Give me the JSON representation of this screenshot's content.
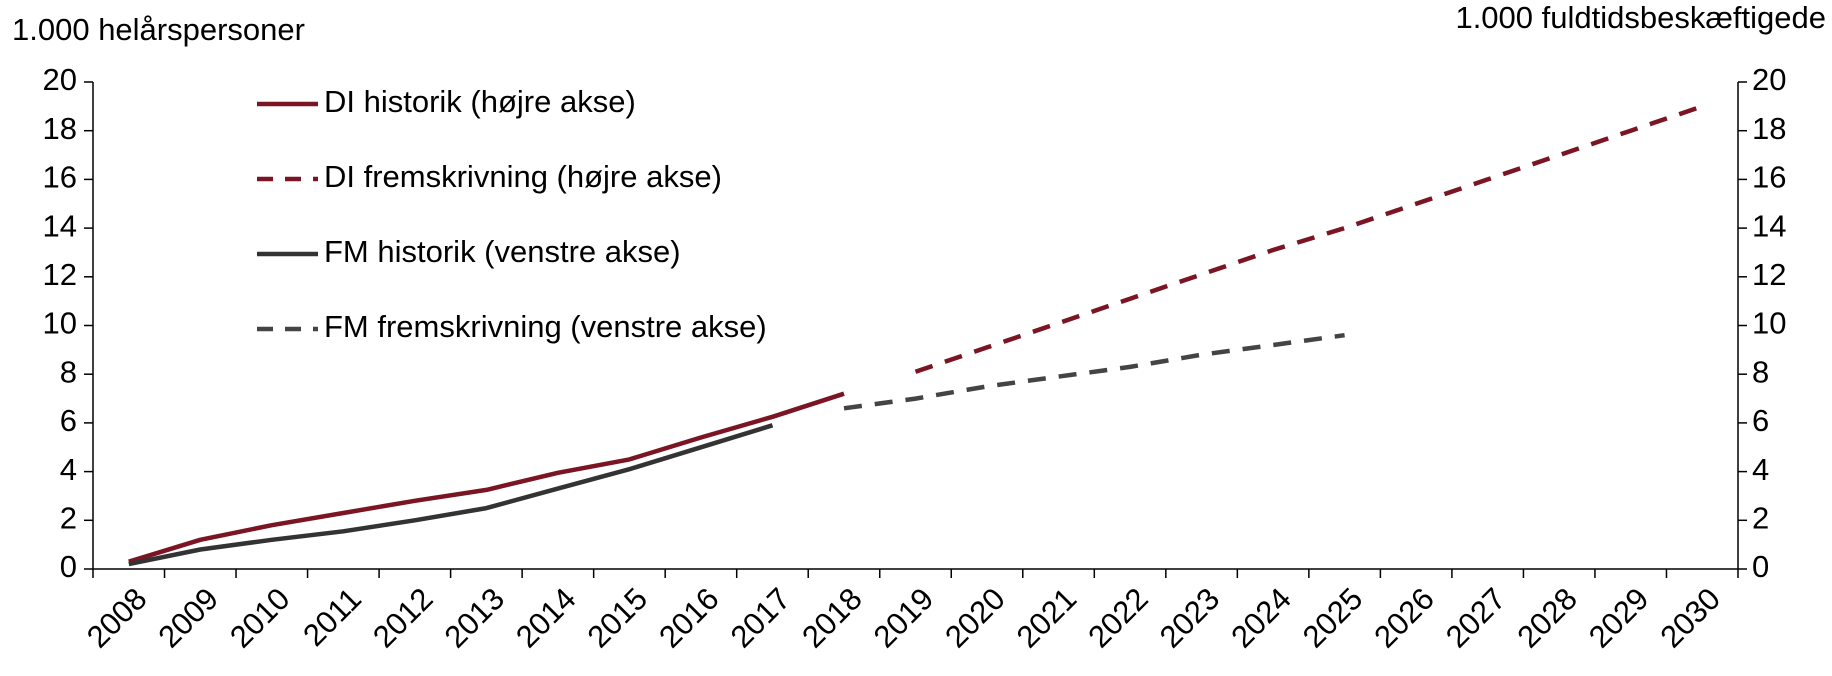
{
  "chart_data": {
    "type": "line",
    "y_label": "1.000 helårspersoner",
    "y2_label": "1.000 fuldtidsbeskæftigede",
    "categories": [
      "2008",
      "2009",
      "2010",
      "2011",
      "2012",
      "2013",
      "2014",
      "2015",
      "2016",
      "2017",
      "2018",
      "2019",
      "2020",
      "2021",
      "2022",
      "2023",
      "2024",
      "2025",
      "2026",
      "2027",
      "2028",
      "2029",
      "2030"
    ],
    "ylim": [
      0,
      20
    ],
    "yticks": [
      0,
      2,
      4,
      6,
      8,
      10,
      12,
      14,
      16,
      18,
      20
    ],
    "y2lim": [
      0,
      20
    ],
    "y2ticks": [
      0,
      2,
      4,
      6,
      8,
      10,
      12,
      14,
      16,
      18,
      20
    ],
    "legend": "upper left",
    "series": [
      {
        "name": "DI historik (højre akse)",
        "color": "#7b1523",
        "dashed": false,
        "axis": "y2",
        "values": [
          0.3,
          1.2,
          1.8,
          2.3,
          2.8,
          3.25,
          3.95,
          4.5,
          5.4,
          6.25,
          7.2,
          null,
          null,
          null,
          null,
          null,
          null,
          null,
          null,
          null,
          null,
          null,
          null
        ]
      },
      {
        "name": "DI fremskrivning (højre akse)",
        "color": "#7b1523",
        "dashed": true,
        "axis": "y2",
        "values": [
          null,
          null,
          null,
          null,
          null,
          null,
          null,
          null,
          null,
          null,
          null,
          8.1,
          9.1,
          10.1,
          11.1,
          12.1,
          13.1,
          14.0,
          15.0,
          16.0,
          17.0,
          18.0,
          19.0
        ]
      },
      {
        "name": "FM historik (venstre akse)",
        "color": "#333333",
        "dashed": false,
        "values": [
          0.2,
          0.8,
          1.2,
          1.55,
          2.0,
          2.5,
          3.3,
          4.1,
          5.0,
          5.9,
          null,
          null,
          null,
          null,
          null,
          null,
          null,
          null,
          null,
          null,
          null,
          null,
          null
        ]
      },
      {
        "name": "FM fremskrivning (venstre akse)",
        "color": "#444444",
        "dashed": true,
        "values": [
          null,
          null,
          null,
          null,
          null,
          null,
          null,
          null,
          null,
          null,
          6.6,
          7.0,
          7.5,
          7.9,
          8.3,
          8.8,
          9.2,
          9.6,
          null,
          null,
          null,
          null,
          null
        ]
      }
    ]
  }
}
